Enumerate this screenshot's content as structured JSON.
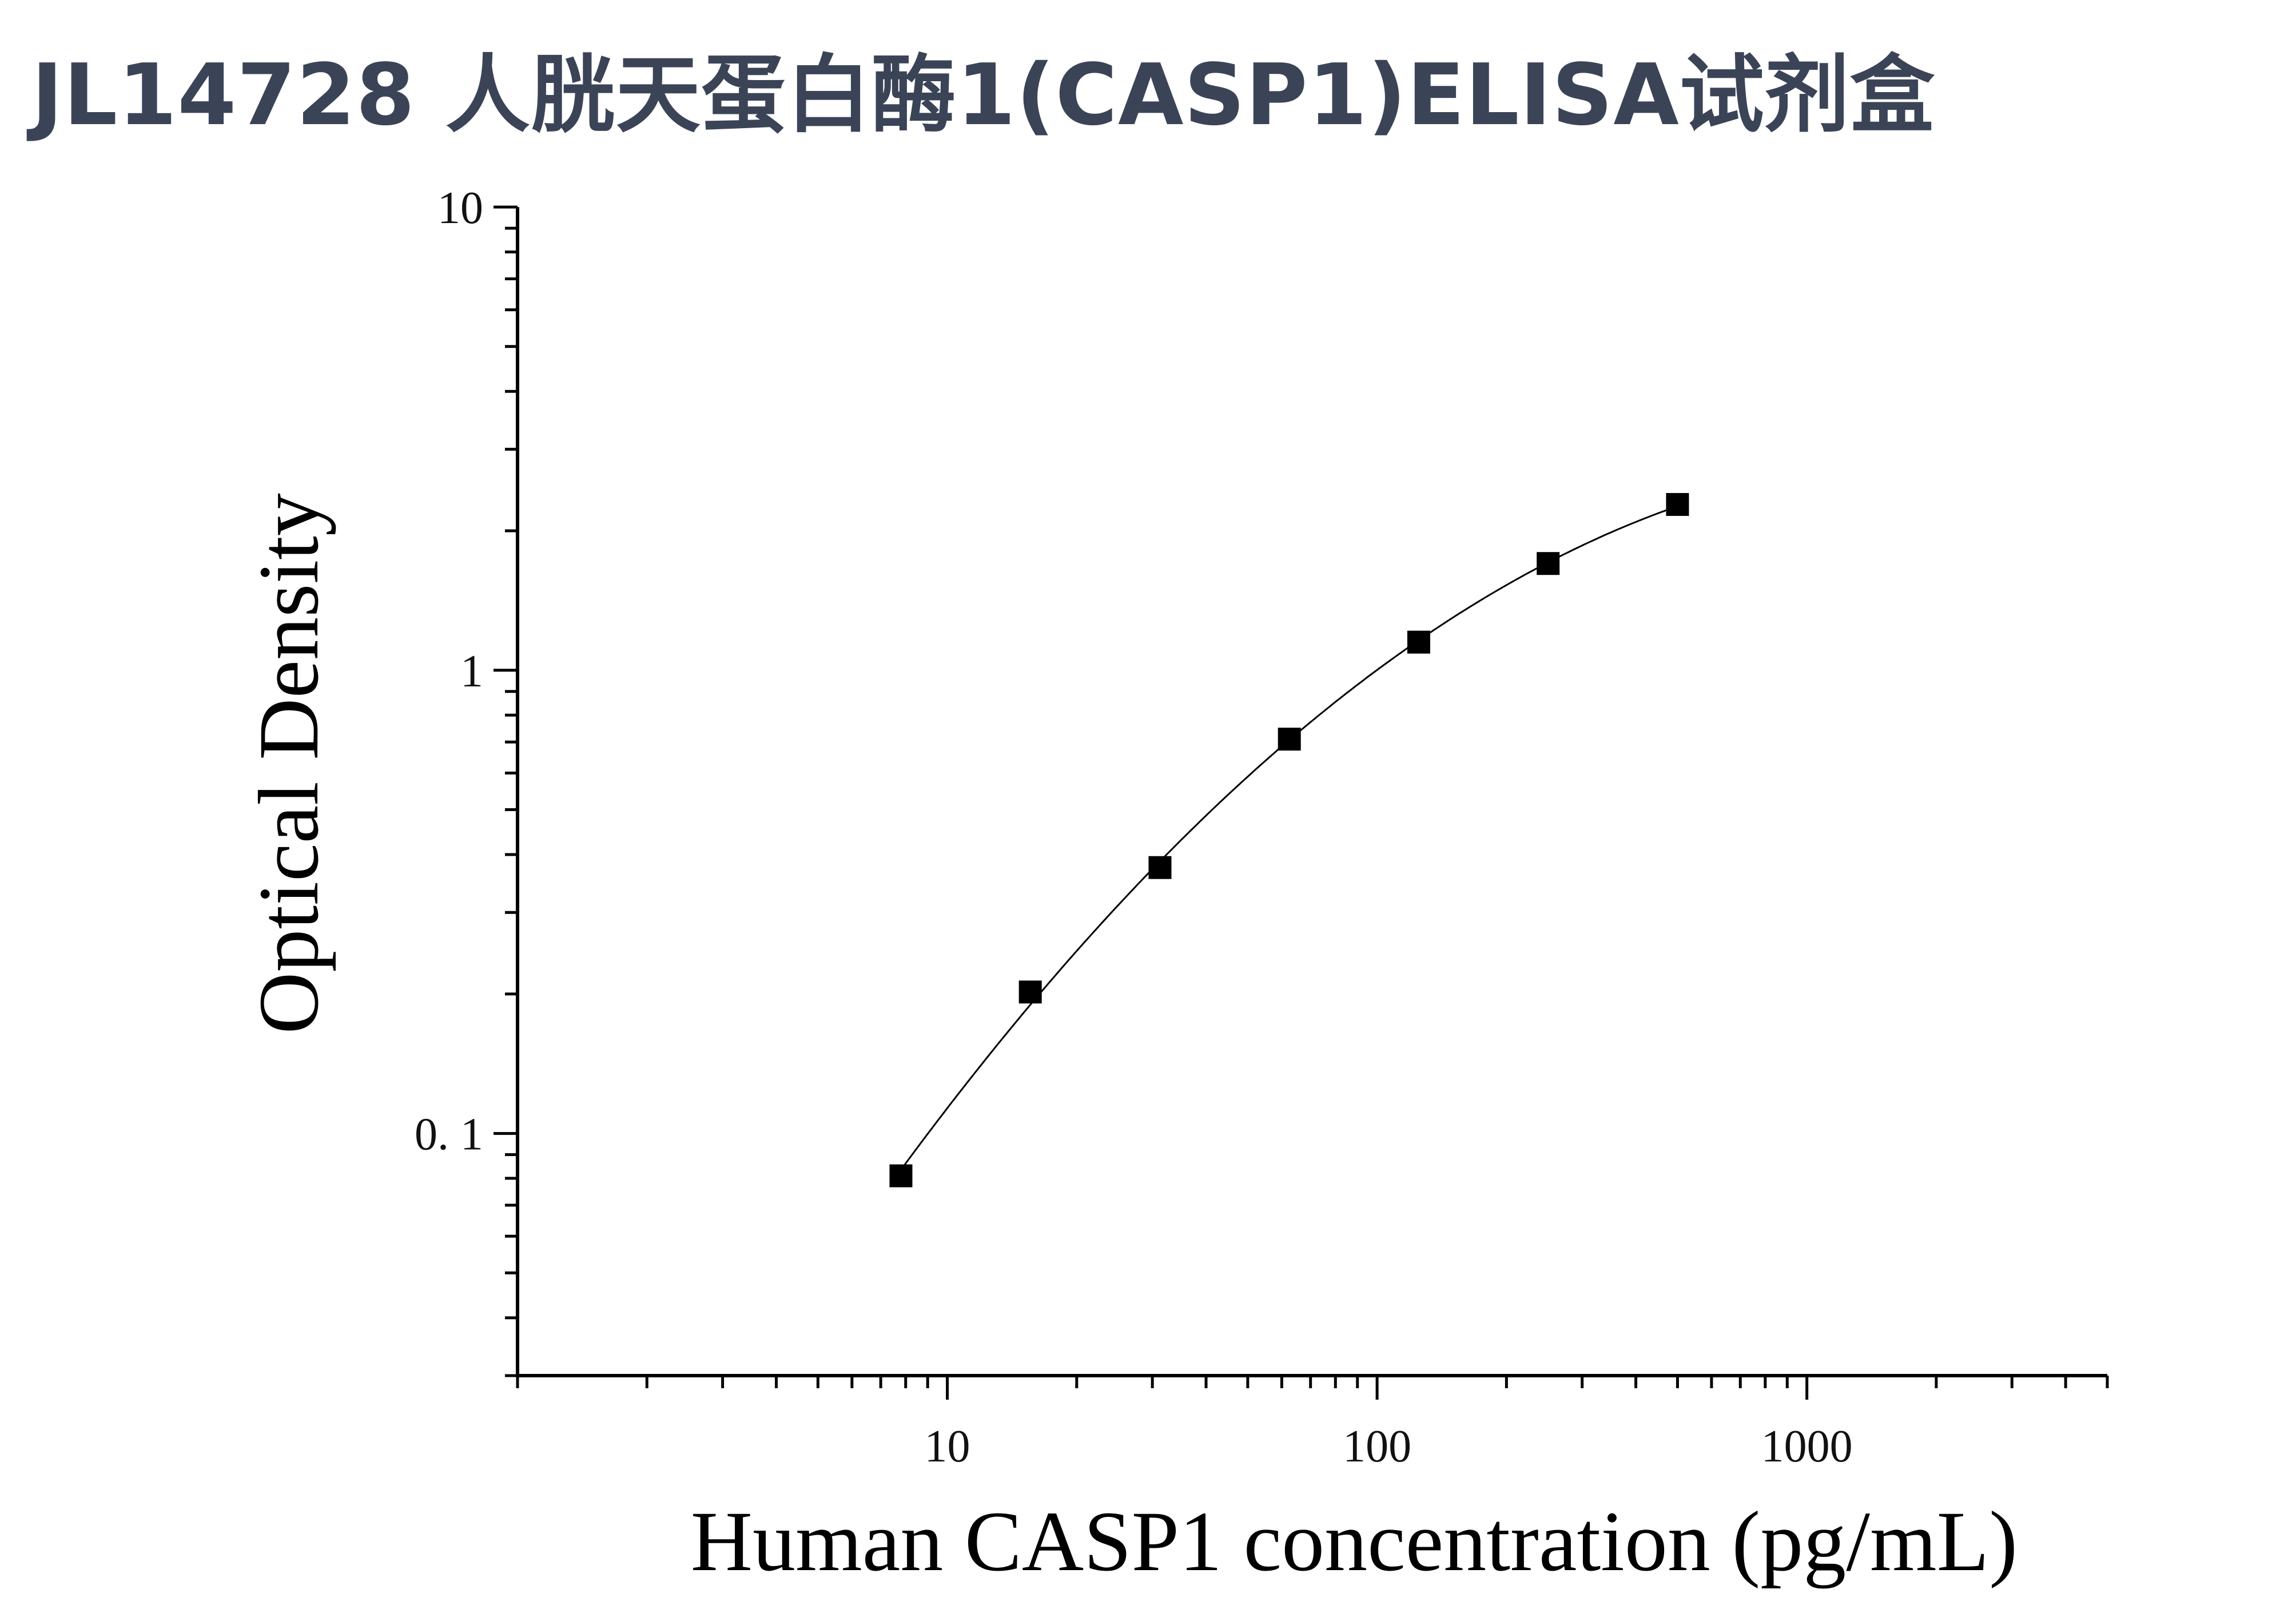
{
  "title": "JL14728 人胱天蛋白酶1(CASP1)ELISA试剂盒",
  "chart_data": {
    "type": "scatter",
    "title": "JL14728 人胱天蛋白酶1(CASP1)ELISA试剂盒",
    "xlabel": "Human CASP1 concentration (pg/mL)",
    "ylabel": "Optical Density",
    "x_scale": "log",
    "y_scale": "log",
    "xlim": [
      1,
      5000
    ],
    "ylim": [
      0.03,
      10
    ],
    "x_ticks": [
      10,
      100,
      1000
    ],
    "x_tick_labels": [
      "10",
      "100",
      "1000"
    ],
    "y_ticks": [
      0.1,
      1,
      10
    ],
    "y_tick_labels": [
      "0. 1",
      "1",
      "10"
    ],
    "grid": false,
    "marker": "square",
    "marker_color": "#000000",
    "curve_color": "#000000",
    "series": [
      {
        "x": [
          7.8,
          15.6,
          31.25,
          62.5,
          125,
          250,
          500
        ],
        "y": [
          0.081,
          0.202,
          0.375,
          0.71,
          1.15,
          1.7,
          2.28
        ]
      }
    ],
    "fit_curve": true
  }
}
